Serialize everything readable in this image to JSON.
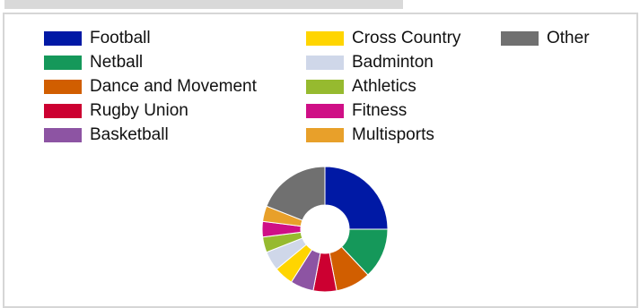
{
  "chart_data": {
    "type": "pie",
    "variant": "donut",
    "legend_position": "top",
    "categories": [
      "Football",
      "Netball",
      "Dance and Movement",
      "Rugby Union",
      "Basketball",
      "Cross Country",
      "Badminton",
      "Athletics",
      "Fitness",
      "Multisports",
      "Other"
    ],
    "values": [
      25,
      13,
      9,
      6,
      6,
      5,
      5,
      4,
      4,
      4,
      19
    ],
    "colors": [
      "#0019a5",
      "#15985a",
      "#d15e00",
      "#cc0031",
      "#8d54a3",
      "#ffd500",
      "#cfd7e9",
      "#96ba2f",
      "#cf0f86",
      "#e8a02a",
      "#707070"
    ],
    "legend_columns": [
      [
        "Football",
        "Netball",
        "Dance and Movement",
        "Rugby Union",
        "Basketball"
      ],
      [
        "Cross Country",
        "Badminton",
        "Athletics",
        "Fitness",
        "Multisports"
      ],
      [
        "Other"
      ]
    ]
  }
}
